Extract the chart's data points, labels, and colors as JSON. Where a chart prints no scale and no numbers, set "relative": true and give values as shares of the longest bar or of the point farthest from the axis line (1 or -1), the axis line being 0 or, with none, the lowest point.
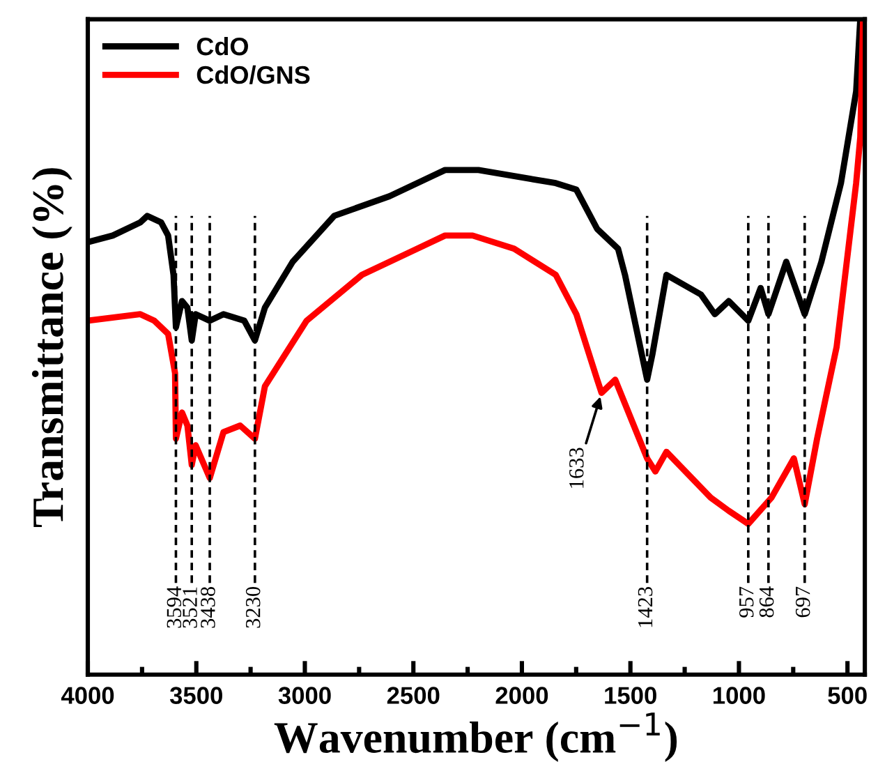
{
  "chart_data": {
    "type": "line",
    "xlabel": "Wavenumber (cm$^{−1}$)",
    "ylabel": "Transmittance (%)",
    "relative": true,
    "xlim": [
      4000,
      420
    ],
    "xticks": [
      4000,
      3500,
      3000,
      2500,
      2000,
      1500,
      1000,
      500
    ],
    "tick_labels": "x",
    "legend": "top left",
    "grid": false,
    "series": [
      {
        "name": "CdO",
        "color": "#000000",
        "x": [
          4000,
          3885,
          3758,
          3726,
          3662,
          3630,
          3605,
          3594,
          3566,
          3541,
          3521,
          3503,
          3438,
          3375,
          3279,
          3230,
          3184,
          3056,
          2865,
          2610,
          2354,
          2200,
          1844,
          1749,
          1653,
          1557,
          1525,
          1423,
          1398,
          1334,
          1175,
          1111,
          1047,
          957,
          900,
          864,
          782,
          697,
          620,
          530,
          460,
          441
        ],
        "values": [
          0.66,
          0.67,
          0.69,
          0.7,
          0.69,
          0.67,
          0.61,
          0.53,
          0.57,
          0.56,
          0.51,
          0.55,
          0.54,
          0.55,
          0.54,
          0.51,
          0.56,
          0.63,
          0.7,
          0.73,
          0.77,
          0.77,
          0.75,
          0.74,
          0.68,
          0.65,
          0.61,
          0.45,
          0.49,
          0.61,
          0.58,
          0.55,
          0.57,
          0.54,
          0.59,
          0.55,
          0.63,
          0.55,
          0.63,
          0.75,
          0.89,
          1
        ]
      },
      {
        "name": "CdO/GNS",
        "color": "#ff0000",
        "x": [
          4000,
          3758,
          3694,
          3630,
          3598,
          3594,
          3566,
          3541,
          3521,
          3503,
          3438,
          3375,
          3298,
          3230,
          3184,
          2992,
          2737,
          2482,
          2354,
          2227,
          2036,
          1844,
          1749,
          1653,
          1633,
          1570,
          1423,
          1385,
          1334,
          1130,
          1047,
          957,
          850,
          747,
          697,
          640,
          550,
          460,
          441,
          428
        ],
        "values": [
          0.54,
          0.55,
          0.54,
          0.52,
          0.46,
          0.36,
          0.4,
          0.38,
          0.32,
          0.35,
          0.3,
          0.37,
          0.38,
          0.36,
          0.44,
          0.54,
          0.61,
          0.65,
          0.67,
          0.67,
          0.65,
          0.61,
          0.55,
          0.45,
          0.43,
          0.45,
          0.33,
          0.31,
          0.34,
          0.27,
          0.25,
          0.23,
          0.27,
          0.33,
          0.26,
          0.36,
          0.5,
          0.75,
          0.82,
          1
        ]
      }
    ],
    "ref_lines": [
      {
        "axis": "x",
        "value": 3594,
        "label": "3594",
        "line_style": "dashed",
        "color": "#000000"
      },
      {
        "axis": "x",
        "value": 3521,
        "label": "3521",
        "line_style": "dashed",
        "color": "#000000"
      },
      {
        "axis": "x",
        "value": 3438,
        "label": "3438",
        "line_style": "dashed",
        "color": "#000000"
      },
      {
        "axis": "x",
        "value": 3230,
        "label": "3230",
        "line_style": "dashed",
        "color": "#000000"
      },
      {
        "axis": "x",
        "value": 1423,
        "label": "1423",
        "line_style": "dashed",
        "color": "#000000"
      },
      {
        "axis": "x",
        "value": 957,
        "label": "957",
        "line_style": "dashed",
        "color": "#000000"
      },
      {
        "axis": "x",
        "value": 864,
        "label": "864",
        "line_style": "dashed",
        "color": "#000000"
      },
      {
        "axis": "x",
        "value": 697,
        "label": "697",
        "line_style": "dashed",
        "color": "#000000"
      }
    ],
    "annotations": [
      {
        "text": "1633",
        "x": 1633,
        "y": 0.43
      }
    ]
  }
}
